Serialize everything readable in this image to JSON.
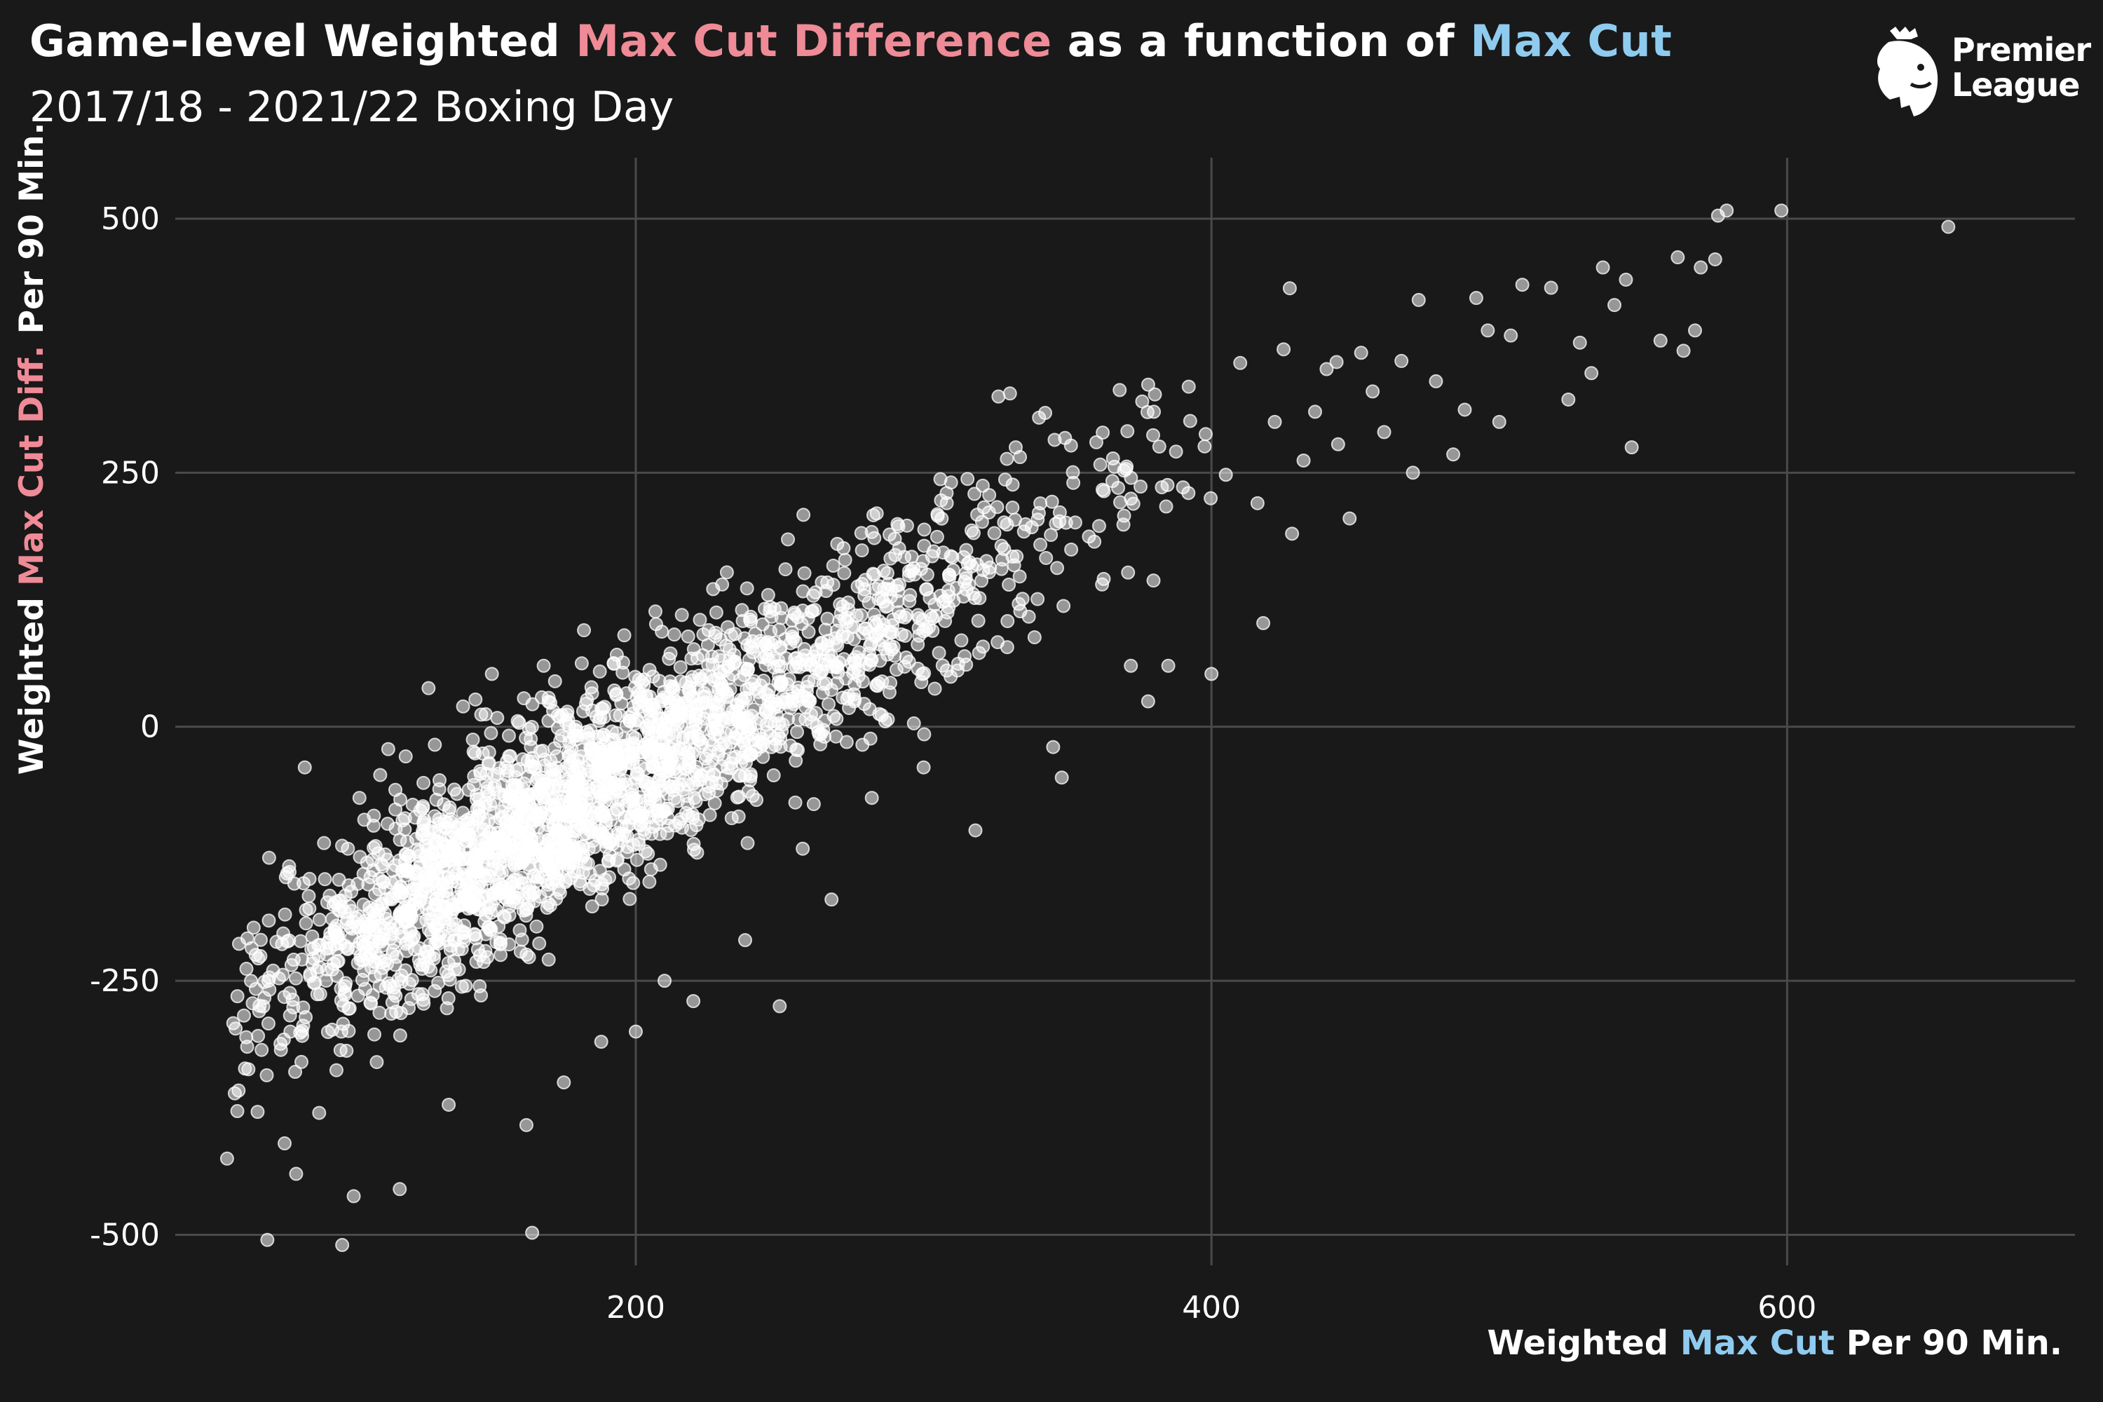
{
  "header": {
    "title_parts": [
      "Game-level Weighted ",
      "Max Cut Difference",
      " as a function of ",
      "Max Cut"
    ],
    "subtitle": "2017/18 - 2021/22 Boxing Day"
  },
  "axes": {
    "y_label_parts": [
      "Weighted ",
      "Max Cut Diff.",
      " Per 90 Min."
    ],
    "x_label_parts": [
      "Weighted ",
      "Max Cut",
      " Per 90 Min."
    ]
  },
  "logo": {
    "line1": "Premier",
    "line2": "League",
    "icon": "premier-league-lion-icon"
  },
  "colors": {
    "background": "#191919",
    "grid": "#4a4a4a",
    "point": "#ffffff",
    "pink": "#ef8a97",
    "blue": "#8fcbef"
  },
  "chart_data": {
    "type": "scatter",
    "title": "Game-level Weighted Max Cut Difference as a function of Max Cut",
    "subtitle": "2017/18 - 2021/22 Boxing Day",
    "xlabel": "Weighted Max Cut Per 90 Min.",
    "ylabel": "Weighted Max Cut Diff. Per 90 Min.",
    "xlim": [
      40,
      700
    ],
    "ylim": [
      -530,
      560
    ],
    "xticks": [
      200,
      400,
      600
    ],
    "yticks": [
      -500,
      -250,
      0,
      250,
      500
    ],
    "xtick_labels": [
      "200",
      "400",
      "600"
    ],
    "ytick_labels": [
      "-500",
      "-250",
      "0",
      "250",
      "500"
    ],
    "grid": true,
    "trend": {
      "slope": 1.65,
      "intercept": -370
    },
    "series": [
      {
        "points": [
          {
            "x": 58,
            "y": -425
          },
          {
            "x": 62,
            "y": -358
          },
          {
            "x": 68,
            "y": -258
          },
          {
            "x": 70,
            "y": -318
          },
          {
            "x": 72,
            "y": -505
          },
          {
            "x": 74,
            "y": -240
          },
          {
            "x": 78,
            "y": -410
          },
          {
            "x": 80,
            "y": -300
          },
          {
            "x": 82,
            "y": -440
          },
          {
            "x": 85,
            "y": -40
          },
          {
            "x": 88,
            "y": -228
          },
          {
            "x": 90,
            "y": -380
          },
          {
            "x": 92,
            "y": -150
          },
          {
            "x": 96,
            "y": -338
          },
          {
            "x": 98,
            "y": -510
          },
          {
            "x": 100,
            "y": -120
          },
          {
            "x": 102,
            "y": -462
          },
          {
            "x": 104,
            "y": -70
          },
          {
            "x": 106,
            "y": -258
          },
          {
            "x": 110,
            "y": -330
          },
          {
            "x": 114,
            "y": -22
          },
          {
            "x": 118,
            "y": -455
          },
          {
            "x": 122,
            "y": -268
          },
          {
            "x": 126,
            "y": -80
          },
          {
            "x": 128,
            "y": 38
          },
          {
            "x": 135,
            "y": -372
          },
          {
            "x": 140,
            "y": 20
          },
          {
            "x": 146,
            "y": -180
          },
          {
            "x": 150,
            "y": 52
          },
          {
            "x": 158,
            "y": -100
          },
          {
            "x": 162,
            "y": -392
          },
          {
            "x": 164,
            "y": -498
          },
          {
            "x": 168,
            "y": 60
          },
          {
            "x": 175,
            "y": -350
          },
          {
            "x": 182,
            "y": 95
          },
          {
            "x": 188,
            "y": -310
          },
          {
            "x": 196,
            "y": 90
          },
          {
            "x": 200,
            "y": -300
          },
          {
            "x": 210,
            "y": -250
          },
          {
            "x": 216,
            "y": 110
          },
          {
            "x": 220,
            "y": -270
          },
          {
            "x": 230,
            "y": 140
          },
          {
            "x": 238,
            "y": -210
          },
          {
            "x": 250,
            "y": -275
          },
          {
            "x": 252,
            "y": 155
          },
          {
            "x": 258,
            "y": -120
          },
          {
            "x": 268,
            "y": -170
          },
          {
            "x": 270,
            "y": 180
          },
          {
            "x": 282,
            "y": -70
          },
          {
            "x": 290,
            "y": 185
          },
          {
            "x": 300,
            "y": -40
          },
          {
            "x": 308,
            "y": 230
          },
          {
            "x": 312,
            "y": 62
          },
          {
            "x": 318,
            "y": -102
          },
          {
            "x": 326,
            "y": 325
          },
          {
            "x": 330,
            "y": 328
          },
          {
            "x": 332,
            "y": 275
          },
          {
            "x": 345,
            "y": -20
          },
          {
            "x": 348,
            "y": -50
          },
          {
            "x": 352,
            "y": 240
          },
          {
            "x": 360,
            "y": 280
          },
          {
            "x": 362,
            "y": 140
          },
          {
            "x": 372,
            "y": 60
          },
          {
            "x": 378,
            "y": 25
          },
          {
            "x": 380,
            "y": 310
          },
          {
            "x": 385,
            "y": 60
          },
          {
            "x": 392,
            "y": 230
          },
          {
            "x": 398,
            "y": 288
          },
          {
            "x": 400,
            "y": 52
          },
          {
            "x": 405,
            "y": 248
          },
          {
            "x": 410,
            "y": 358
          },
          {
            "x": 416,
            "y": 220
          },
          {
            "x": 418,
            "y": 102
          },
          {
            "x": 422,
            "y": 300
          },
          {
            "x": 428,
            "y": 190
          },
          {
            "x": 432,
            "y": 262
          },
          {
            "x": 436,
            "y": 310
          },
          {
            "x": 440,
            "y": 352
          },
          {
            "x": 444,
            "y": 278
          },
          {
            "x": 448,
            "y": 205
          },
          {
            "x": 452,
            "y": 368
          },
          {
            "x": 456,
            "y": 330
          },
          {
            "x": 460,
            "y": 290
          },
          {
            "x": 466,
            "y": 360
          },
          {
            "x": 470,
            "y": 250
          },
          {
            "x": 472,
            "y": 420
          },
          {
            "x": 478,
            "y": 340
          },
          {
            "x": 484,
            "y": 268
          },
          {
            "x": 488,
            "y": 312
          },
          {
            "x": 492,
            "y": 422
          },
          {
            "x": 496,
            "y": 390
          },
          {
            "x": 500,
            "y": 300
          },
          {
            "x": 504,
            "y": 385
          },
          {
            "x": 508,
            "y": 435
          },
          {
            "x": 518,
            "y": 432
          },
          {
            "x": 524,
            "y": 322
          },
          {
            "x": 528,
            "y": 378
          },
          {
            "x": 532,
            "y": 348
          },
          {
            "x": 536,
            "y": 452
          },
          {
            "x": 540,
            "y": 415
          },
          {
            "x": 544,
            "y": 440
          },
          {
            "x": 546,
            "y": 275
          },
          {
            "x": 556,
            "y": 380
          },
          {
            "x": 562,
            "y": 462
          },
          {
            "x": 564,
            "y": 370
          },
          {
            "x": 568,
            "y": 390
          },
          {
            "x": 570,
            "y": 452
          },
          {
            "x": 575,
            "y": 460
          },
          {
            "x": 576,
            "y": 503
          },
          {
            "x": 579,
            "y": 508
          },
          {
            "x": 598,
            "y": 508
          },
          {
            "x": 656,
            "y": 492
          }
        ]
      }
    ]
  }
}
